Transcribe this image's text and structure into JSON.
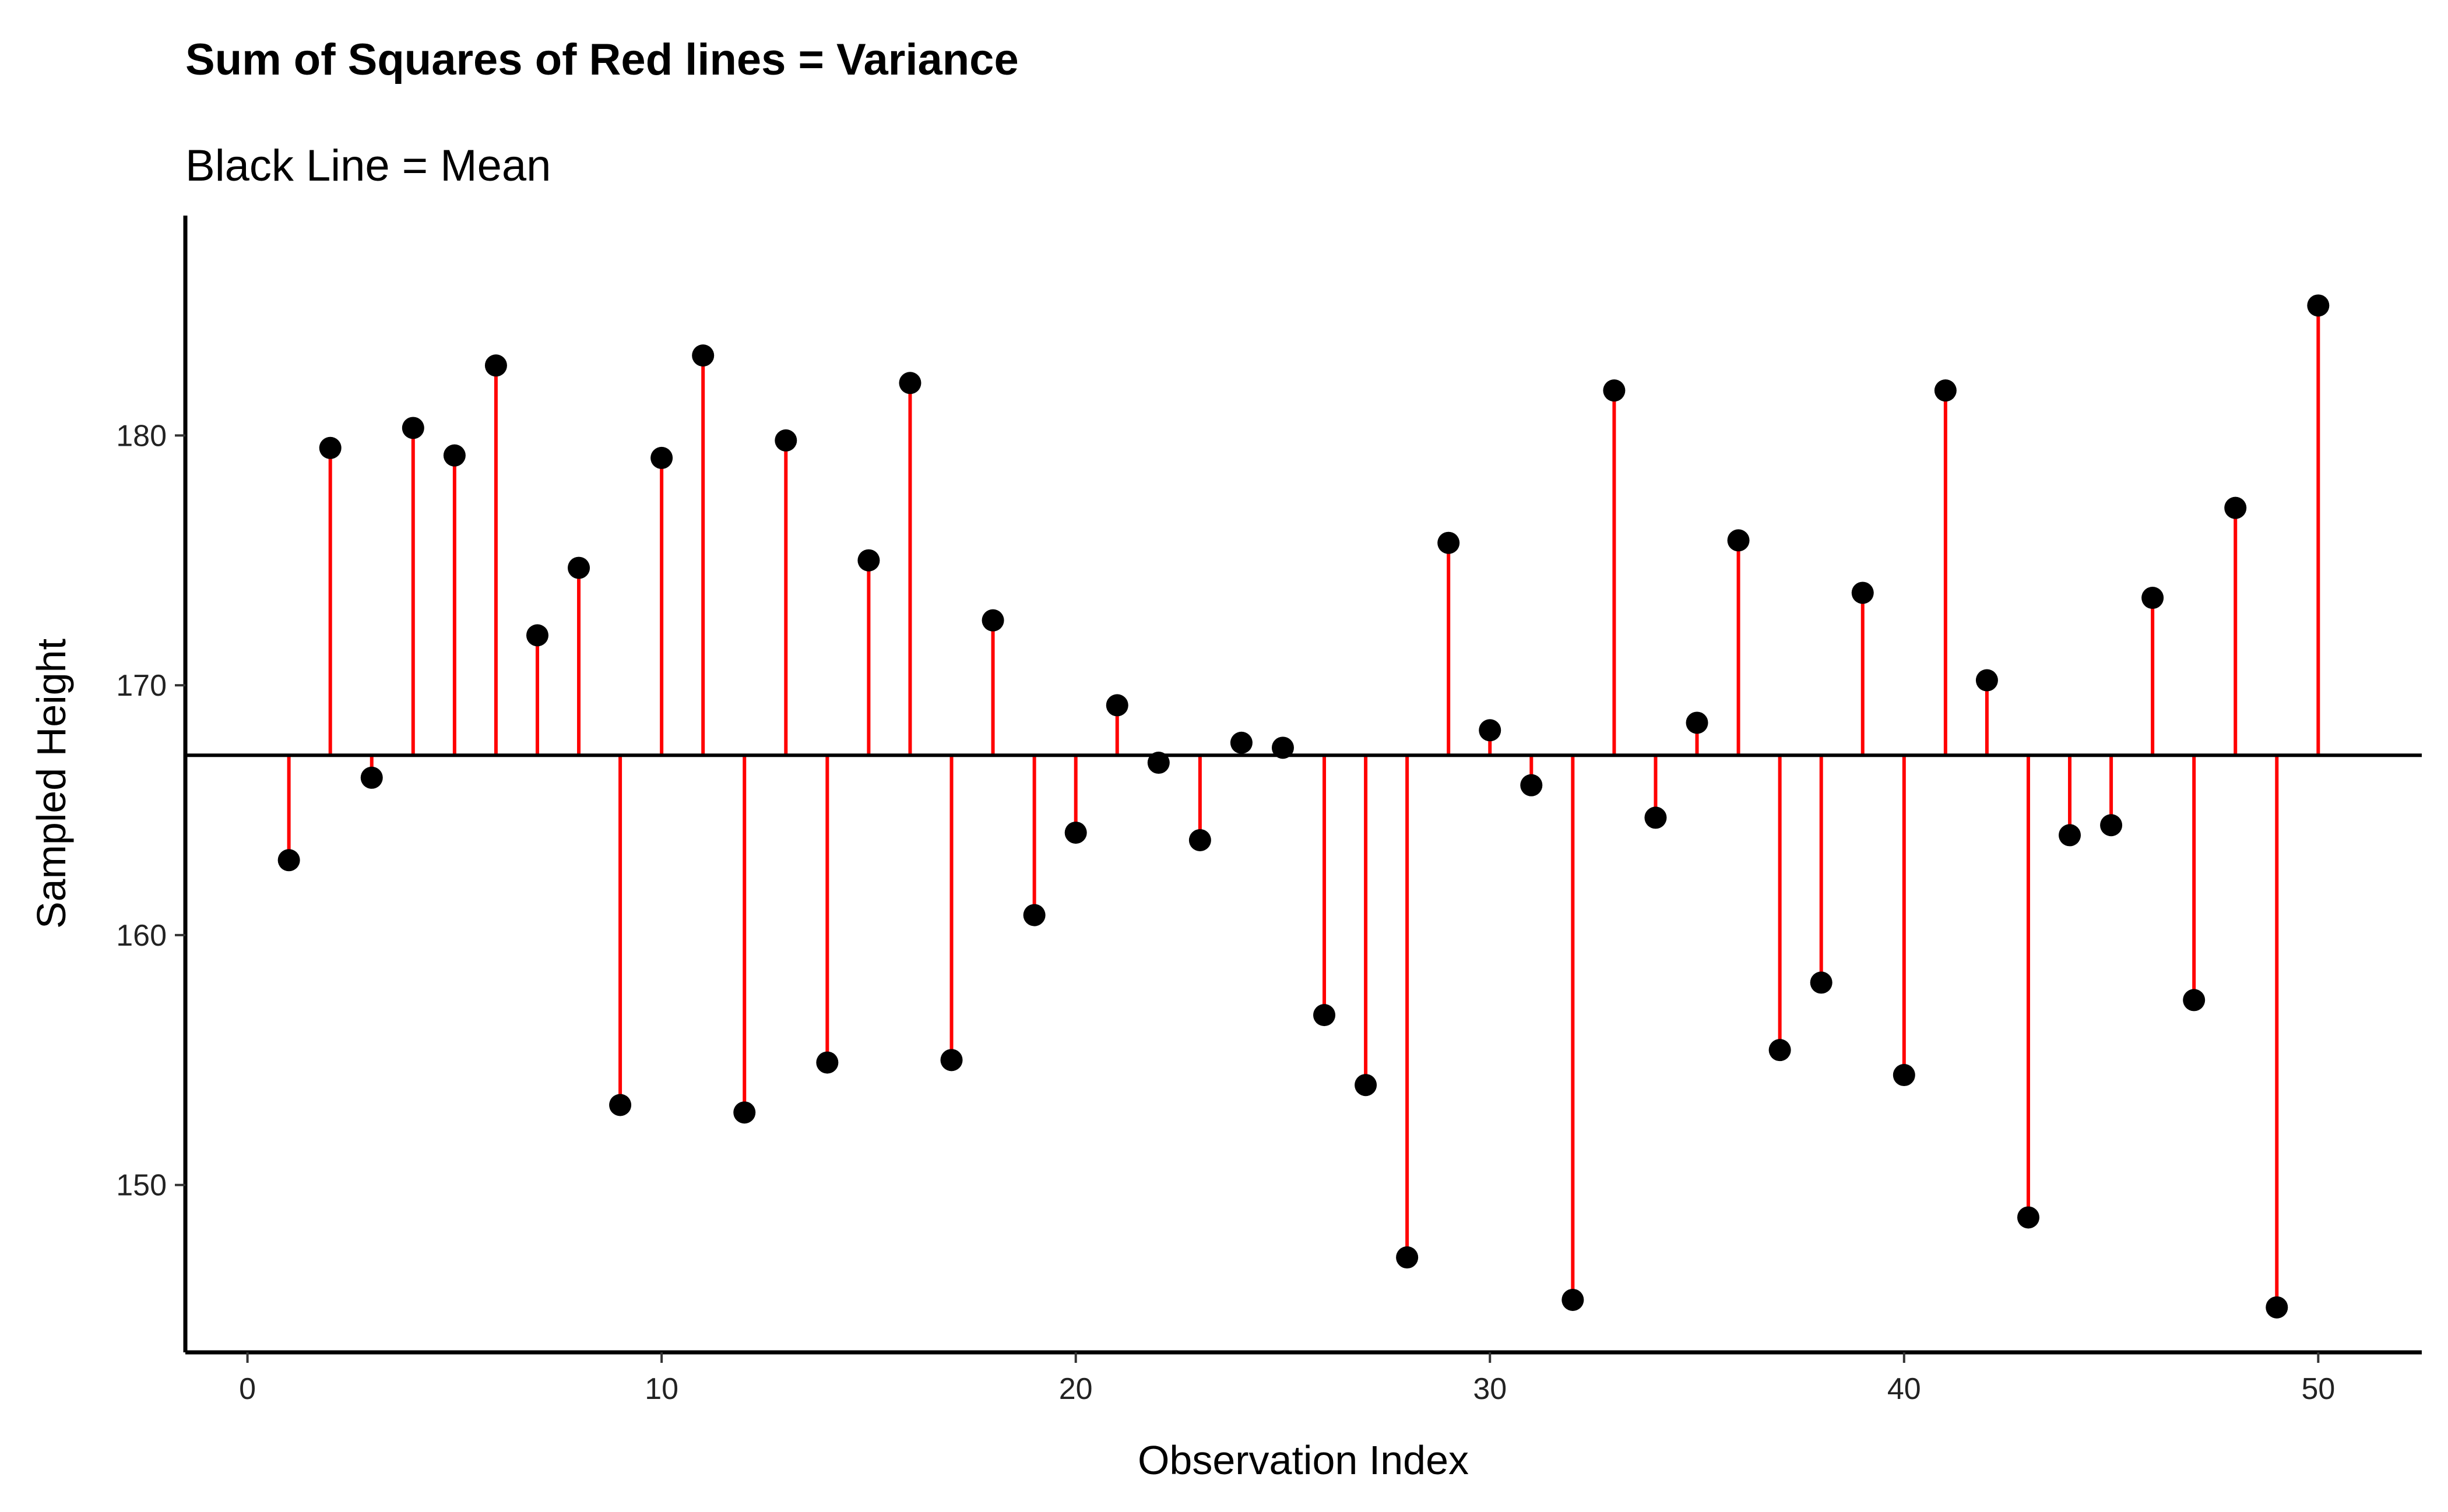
{
  "chart_data": {
    "type": "scatter",
    "title": "Sum of Squares of Red lines = Variance",
    "subtitle": "Black Line = Mean",
    "xlabel": "Observation Index",
    "ylabel": "Sampled Height",
    "xlim": [
      -1.5,
      52.5
    ],
    "ylim": [
      143.3,
      188.8
    ],
    "xticks": [
      0,
      10,
      20,
      30,
      40,
      50
    ],
    "yticks": [
      150,
      160,
      170,
      180
    ],
    "mean": 167.2,
    "grid": false,
    "legend": "none",
    "colors": {
      "points": "#000000",
      "residuals": "#ff0000",
      "mean_line": "#000000"
    },
    "points": [
      {
        "x": 1,
        "y": 163.0
      },
      {
        "x": 2,
        "y": 179.5
      },
      {
        "x": 3,
        "y": 166.3
      },
      {
        "x": 4,
        "y": 180.3
      },
      {
        "x": 5,
        "y": 179.2
      },
      {
        "x": 6,
        "y": 182.8
      },
      {
        "x": 7,
        "y": 172.0
      },
      {
        "x": 8,
        "y": 174.7
      },
      {
        "x": 9,
        "y": 153.2
      },
      {
        "x": 10,
        "y": 179.1
      },
      {
        "x": 11,
        "y": 183.2
      },
      {
        "x": 12,
        "y": 152.9
      },
      {
        "x": 13,
        "y": 179.8
      },
      {
        "x": 14,
        "y": 154.9
      },
      {
        "x": 15,
        "y": 175.0
      },
      {
        "x": 16,
        "y": 182.1
      },
      {
        "x": 17,
        "y": 155.0
      },
      {
        "x": 18,
        "y": 172.6
      },
      {
        "x": 19,
        "y": 160.8
      },
      {
        "x": 20,
        "y": 164.1
      },
      {
        "x": 21,
        "y": 169.2
      },
      {
        "x": 22,
        "y": 166.9
      },
      {
        "x": 23,
        "y": 163.8
      },
      {
        "x": 24,
        "y": 167.7
      },
      {
        "x": 25,
        "y": 167.5
      },
      {
        "x": 26,
        "y": 156.8
      },
      {
        "x": 27,
        "y": 154.0
      },
      {
        "x": 28,
        "y": 147.1
      },
      {
        "x": 29,
        "y": 175.7
      },
      {
        "x": 30,
        "y": 168.2
      },
      {
        "x": 31,
        "y": 166.0
      },
      {
        "x": 32,
        "y": 145.4
      },
      {
        "x": 33,
        "y": 181.8
      },
      {
        "x": 34,
        "y": 164.7
      },
      {
        "x": 35,
        "y": 168.5
      },
      {
        "x": 36,
        "y": 175.8
      },
      {
        "x": 37,
        "y": 155.4
      },
      {
        "x": 38,
        "y": 158.1
      },
      {
        "x": 39,
        "y": 173.7
      },
      {
        "x": 40,
        "y": 154.4
      },
      {
        "x": 41,
        "y": 181.8
      },
      {
        "x": 42,
        "y": 170.2
      },
      {
        "x": 43,
        "y": 148.7
      },
      {
        "x": 44,
        "y": 164.0
      },
      {
        "x": 45,
        "y": 164.4
      },
      {
        "x": 46,
        "y": 173.5
      },
      {
        "x": 47,
        "y": 157.4
      },
      {
        "x": 48,
        "y": 177.1
      },
      {
        "x": 49,
        "y": 145.1
      },
      {
        "x": 50,
        "y": 185.2
      }
    ]
  }
}
